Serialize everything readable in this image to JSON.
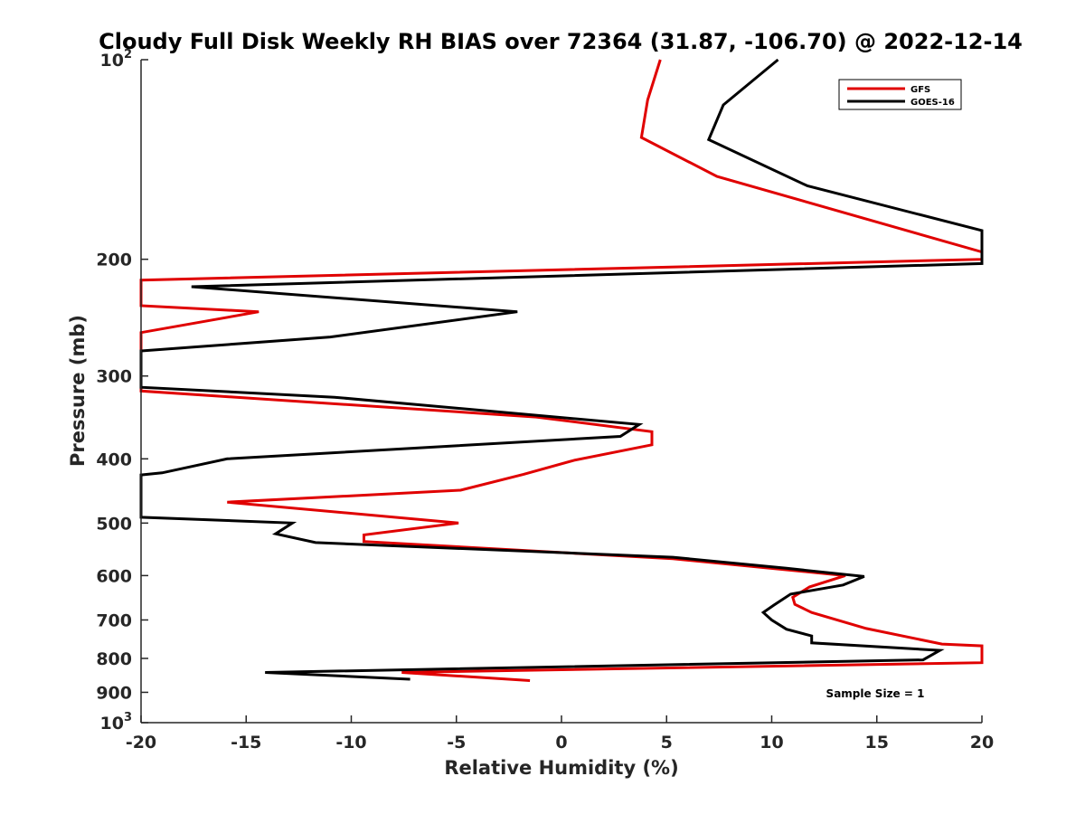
{
  "chart_data": {
    "type": "line",
    "title": "Cloudy Full Disk Weekly RH BIAS over 72364 (31.87, -106.70) @ 2022-12-14",
    "xlabel": "Relative Humidity (%)",
    "ylabel": "Pressure (mb)",
    "xlim": [
      -20,
      20
    ],
    "ylim": [
      100,
      1000
    ],
    "y_scale": "log",
    "y_reversed": true,
    "x_ticks": [
      "-20",
      "-15",
      "-10",
      "-5",
      "0",
      "5",
      "10",
      "15",
      "20"
    ],
    "y_ticks": [
      {
        "value": 100,
        "base": "10",
        "exp": "2"
      },
      {
        "value": 200,
        "label": "200"
      },
      {
        "value": 300,
        "label": "300"
      },
      {
        "value": 400,
        "label": "400"
      },
      {
        "value": 500,
        "label": "500"
      },
      {
        "value": 600,
        "label": "600"
      },
      {
        "value": 700,
        "label": "700"
      },
      {
        "value": 800,
        "label": "800"
      },
      {
        "value": 900,
        "label": "900"
      },
      {
        "value": 1000,
        "base": "10",
        "exp": "3"
      }
    ],
    "legend_position": "top-right",
    "annotation": "Sample Size = 1",
    "series": [
      {
        "name": "GFS",
        "color": "#e00000",
        "points": [
          [
            4.7,
            100
          ],
          [
            4.1,
            115
          ],
          [
            3.8,
            131
          ],
          [
            7.4,
            150
          ],
          [
            20,
            195
          ],
          [
            20,
            200
          ],
          [
            -20,
            215
          ],
          [
            -20,
            235
          ],
          [
            -14.4,
            240
          ],
          [
            -20,
            258
          ],
          [
            -20,
            316
          ],
          [
            -1.2,
            346
          ],
          [
            4.3,
            364
          ],
          [
            4.3,
            381
          ],
          [
            0.6,
            402
          ],
          [
            -1.8,
            422
          ],
          [
            -4.8,
            446
          ],
          [
            -15.9,
            465
          ],
          [
            -4.9,
            500
          ],
          [
            -9.4,
            521
          ],
          [
            -9.4,
            533
          ],
          [
            5.3,
            566
          ],
          [
            13.5,
            600
          ],
          [
            11.8,
            624
          ],
          [
            11.0,
            647
          ],
          [
            11.1,
            663
          ],
          [
            11.9,
            682
          ],
          [
            14.5,
            721
          ],
          [
            18.1,
            761
          ],
          [
            20,
            766
          ],
          [
            20,
            812
          ],
          [
            -7.6,
            840
          ],
          [
            -1.5,
            864
          ]
        ]
      },
      {
        "name": "GOES-16",
        "color": "#000000",
        "points": [
          [
            10.3,
            100
          ],
          [
            7.7,
            117
          ],
          [
            7.0,
            132
          ],
          [
            11.7,
            155
          ],
          [
            20,
            181
          ],
          [
            20,
            203
          ],
          [
            -17.6,
            220
          ],
          [
            -2.1,
            240
          ],
          [
            -11.0,
            262
          ],
          [
            -20,
            275
          ],
          [
            -20,
            312
          ],
          [
            -10.8,
            323
          ],
          [
            3.7,
            355
          ],
          [
            2.8,
            370
          ],
          [
            -15.9,
            400
          ],
          [
            -19.0,
            420
          ],
          [
            -20,
            423
          ],
          [
            -20,
            490
          ],
          [
            -12.8,
            500
          ],
          [
            -13.6,
            519
          ],
          [
            -11.7,
            535
          ],
          [
            5.3,
            563
          ],
          [
            10.7,
            585
          ],
          [
            14.4,
            602
          ],
          [
            13.4,
            620
          ],
          [
            10.9,
            640
          ],
          [
            10.1,
            665
          ],
          [
            9.6,
            682
          ],
          [
            10.0,
            700
          ],
          [
            10.7,
            723
          ],
          [
            11.9,
            740
          ],
          [
            11.9,
            758
          ],
          [
            18.0,
            778
          ],
          [
            17.2,
            804
          ],
          [
            -14.1,
            840
          ],
          [
            -7.2,
            860
          ]
        ]
      }
    ]
  }
}
